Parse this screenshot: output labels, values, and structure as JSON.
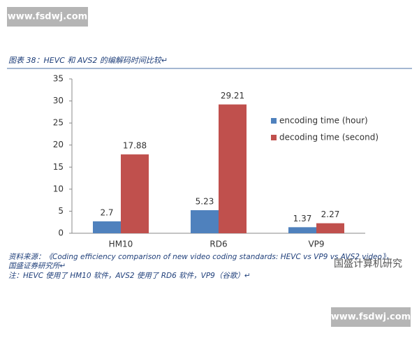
{
  "watermarks": [
    "www.fsdwj.com",
    "www.fsdwj.com"
  ],
  "caption": "图表 38：HEVC 和 AVS2 的编解码时间比较↵",
  "source": [
    "资料来源：《Coding efficiency comparison of new video coding standards: HEVC vs VP9 vs AVS2 video》，",
    "国盛证券研究所↵"
  ],
  "note": "注：HEVC 使用了 HM10 软件，AVS2 使用了 RD6 软件，VP9（谷歌）↵",
  "stamp": "国盛计算机研究",
  "chart_data": {
    "type": "bar",
    "categories": [
      "HM10",
      "RD6",
      "VP9"
    ],
    "series": [
      {
        "name": "encoding time (hour)",
        "color": "#4f81bd",
        "values": [
          2.7,
          5.23,
          1.37
        ]
      },
      {
        "name": "decoding time (second)",
        "color": "#c0504d",
        "values": [
          17.88,
          29.21,
          2.27
        ]
      }
    ],
    "ylim": [
      0,
      35
    ],
    "yticks": [
      0,
      5,
      10,
      15,
      20,
      25,
      30,
      35
    ],
    "grid": false,
    "legend": "right"
  }
}
